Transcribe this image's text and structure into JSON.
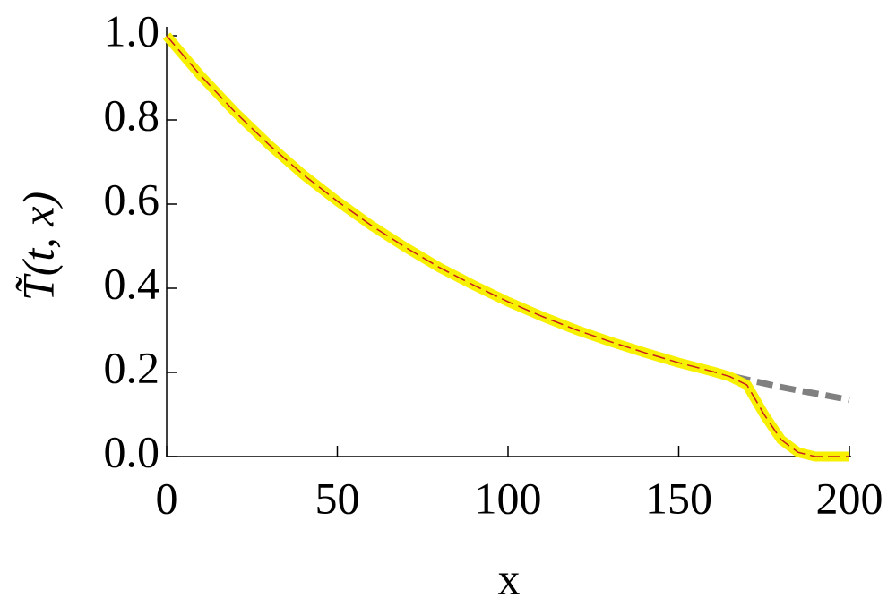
{
  "chart_data": {
    "type": "line",
    "x_label": "x",
    "y_label": "T̃(t, x)",
    "x": [
      0,
      10,
      20,
      30,
      40,
      50,
      60,
      70,
      80,
      90,
      100,
      110,
      120,
      130,
      140,
      150,
      160,
      165,
      170,
      175,
      180,
      185,
      190,
      200
    ],
    "series": [
      {
        "color": "#808080",
        "style": "dashed",
        "width": 7,
        "values": [
          1,
          0.905,
          0.819,
          0.741,
          0.67,
          0.607,
          0.549,
          0.497,
          0.449,
          0.407,
          0.368,
          0.333,
          0.301,
          0.273,
          0.247,
          0.223,
          0.202,
          0.192,
          0.183,
          0.174,
          0.165,
          0.157,
          0.15,
          0.135
        ]
      },
      {
        "color": "#f7f000",
        "style": "solid",
        "width": 11,
        "values": [
          1,
          0.905,
          0.819,
          0.741,
          0.67,
          0.607,
          0.549,
          0.497,
          0.449,
          0.407,
          0.368,
          0.333,
          0.301,
          0.273,
          0.247,
          0.223,
          0.202,
          0.19,
          0.17,
          0.1,
          0.04,
          0.01,
          0,
          0
        ]
      },
      {
        "color": "#c81e1e",
        "style": "dashed",
        "width": 1.5,
        "values": [
          1,
          0.905,
          0.819,
          0.741,
          0.67,
          0.607,
          0.549,
          0.497,
          0.449,
          0.407,
          0.368,
          0.333,
          0.301,
          0.273,
          0.247,
          0.223,
          0.202,
          0.19,
          0.17,
          0.1,
          0.04,
          0.01,
          0,
          0
        ]
      }
    ],
    "xlim": [
      0,
      200
    ],
    "xticks": [
      0,
      50,
      100,
      150,
      200
    ],
    "ylim": [
      0,
      1
    ],
    "yticks": [
      {
        "value": 0,
        "label": "0.0"
      },
      0.2,
      0.4,
      0.6,
      0.8,
      {
        "value": 1,
        "label": "1.0"
      }
    ]
  }
}
